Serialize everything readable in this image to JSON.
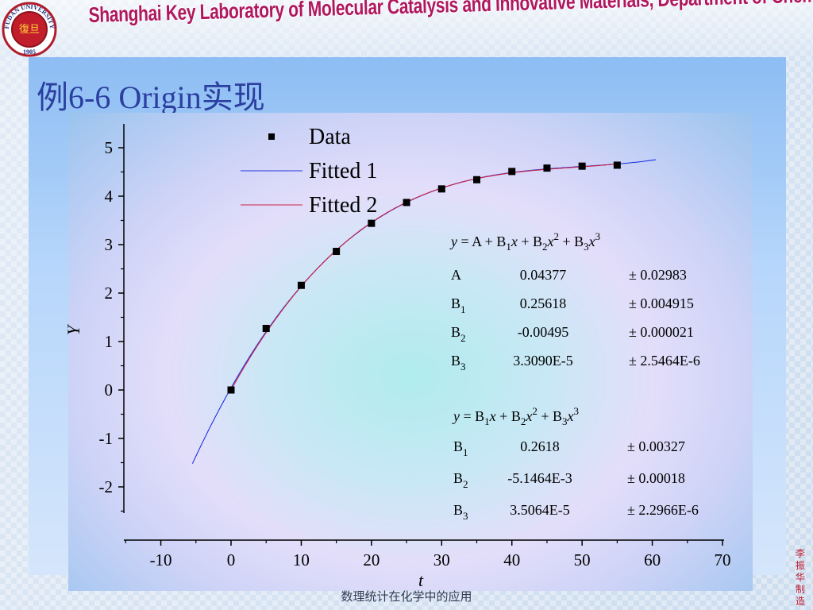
{
  "header": {
    "banner_text": "Shanghai Key Laboratory of Molecular Catalysis and Innovative Materials, Department of Chemistry",
    "logo": {
      "icon": "university-seal-icon",
      "text_top": "FUDAN UNIVERSITY",
      "text_bottom": "1905",
      "center_char": "復旦"
    },
    "banner_color": "#b0175e"
  },
  "slide": {
    "title": "例6-6 Origin实现",
    "title_color": "#2b3fa0"
  },
  "footer": {
    "text": "数理统计在化学中的应用"
  },
  "side_credit": {
    "text": "李振华制造",
    "color": "#c0182e"
  },
  "chart_data": {
    "type": "scatter",
    "xlabel": "t",
    "ylabel": "Y",
    "xlim": [
      -15,
      70
    ],
    "ylim": [
      -2.5,
      5.5
    ],
    "xticks": [
      -10,
      0,
      10,
      20,
      30,
      40,
      50,
      60,
      70
    ],
    "yticks": [
      -2,
      -1,
      0,
      1,
      2,
      3,
      4,
      5
    ],
    "grid": false,
    "legend_position": "top-center",
    "series": [
      {
        "name": "Data",
        "kind": "points",
        "color": "#000000",
        "x": [
          0,
          5,
          10,
          15,
          20,
          25,
          30,
          35,
          40,
          45,
          50,
          55
        ],
        "y": [
          0.0,
          1.27,
          2.16,
          2.86,
          3.44,
          3.87,
          4.15,
          4.34,
          4.51,
          4.58,
          4.62,
          4.64
        ]
      },
      {
        "name": "Fitted 1",
        "kind": "curve",
        "color": "#2233dd",
        "model": "cubic",
        "coef": [
          0.04377,
          0.25618,
          -0.00495,
          3.309e-05
        ],
        "x_range": [
          -5.5,
          60.5
        ]
      },
      {
        "name": "Fitted 2",
        "kind": "curve",
        "color": "#cc2244",
        "model": "cubic",
        "coef": [
          0,
          0.2618,
          -0.0051464,
          3.5064e-05
        ],
        "x_range": [
          0,
          55
        ]
      }
    ],
    "annotations": {
      "fit1": {
        "equation": {
          "y": "y",
          "eq": " = A + B",
          "s1": "1",
          "x1": "x",
          "p1": " + B",
          "s2": "2",
          "x2": "x",
          "e2": "2",
          "p2": " + B",
          "s3": "3",
          "x3": "x",
          "e3": "3"
        },
        "rows": [
          {
            "name": "A",
            "sub": "",
            "value": "0.04377",
            "error": "± 0.02983"
          },
          {
            "name": "B",
            "sub": "1",
            "value": "0.25618",
            "error": "± 0.004915"
          },
          {
            "name": "B",
            "sub": "2",
            "value": "-0.00495",
            "error": "± 0.000021"
          },
          {
            "name": "B",
            "sub": "3",
            "value": "3.3090E-5",
            "error": "± 2.5464E-6"
          }
        ]
      },
      "fit2": {
        "equation": {
          "y": "y",
          "eq": " = B",
          "s1": "1",
          "x1": "x",
          "p1": " + B",
          "s2": "2",
          "x2": "x",
          "e2": "2",
          "p2": " + B",
          "s3": "3",
          "x3": "x",
          "e3": "3"
        },
        "rows": [
          {
            "name": "B",
            "sub": "1",
            "value": "0.2618",
            "error": "± 0.00327"
          },
          {
            "name": "B",
            "sub": "2",
            "value": "-5.1464E-3",
            "error": "± 0.00018"
          },
          {
            "name": "B",
            "sub": "3",
            "value": "3.5064E-5",
            "error": "± 2.2966E-6"
          }
        ]
      }
    }
  }
}
